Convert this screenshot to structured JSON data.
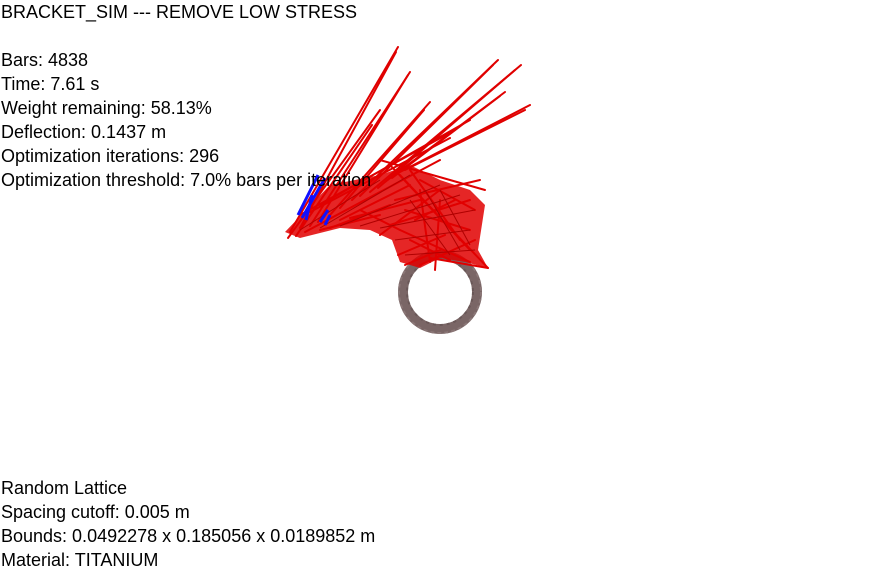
{
  "title": "BRACKET_SIM --- REMOVE LOW STRESS",
  "stats": {
    "bars": "Bars: 4838",
    "time": "Time: 7.61 s",
    "weight": "Weight remaining: 58.13%",
    "deflection": "Deflection: 0.1437 m",
    "iterations": "Optimization iterations: 296",
    "threshold": "Optimization threshold: 7.0% bars per iteration"
  },
  "lattice": {
    "type": "Random Lattice",
    "spacing": "Spacing cutoff: 0.005 m",
    "bounds": "Bounds: 0.0492278 x 0.185056 x 0.0189852 m",
    "material": "Material: TITANIUM"
  },
  "colors": {
    "high_stress": "#e00000",
    "compression": "#1010ff",
    "support_ring": "#7a6666",
    "background": "#ffffff"
  }
}
